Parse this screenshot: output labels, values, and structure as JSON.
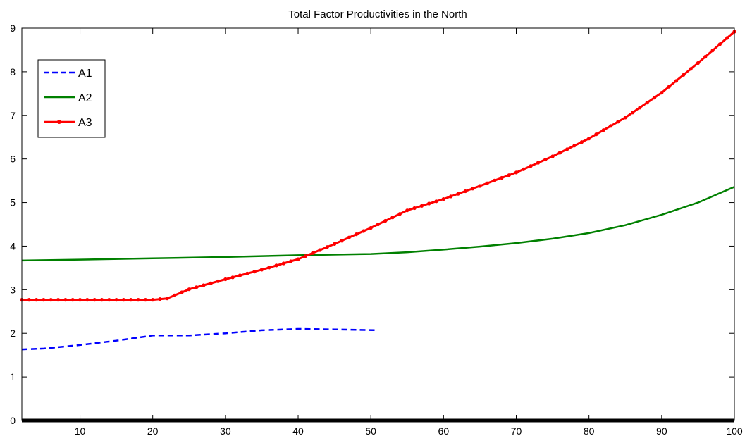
{
  "chart_data": {
    "type": "line",
    "title": "Total Factor Productivities in the North",
    "xlabel": "",
    "ylabel": "",
    "xlim": [
      2,
      100
    ],
    "ylim": [
      0,
      9
    ],
    "x_ticks": [
      10,
      20,
      30,
      40,
      50,
      60,
      70,
      80,
      90,
      100
    ],
    "y_ticks": [
      0,
      1,
      2,
      3,
      4,
      5,
      6,
      7,
      8,
      9
    ],
    "grid": false,
    "legend_position": "top-left",
    "series": [
      {
        "name": "A1",
        "color": "#0000ff",
        "style": "dashed",
        "x": [
          2,
          5,
          10,
          15,
          20,
          25,
          30,
          35,
          40,
          45,
          51
        ],
        "y": [
          1.63,
          1.65,
          1.73,
          1.83,
          1.95,
          1.95,
          2.0,
          2.07,
          2.1,
          2.09,
          2.07
        ]
      },
      {
        "name": "A2",
        "color": "#008000",
        "style": "solid",
        "x": [
          2,
          10,
          20,
          30,
          40,
          50,
          55,
          60,
          65,
          70,
          75,
          80,
          85,
          90,
          95,
          100
        ],
        "y": [
          3.67,
          3.69,
          3.72,
          3.75,
          3.79,
          3.82,
          3.86,
          3.92,
          3.99,
          4.07,
          4.17,
          4.3,
          4.48,
          4.72,
          5.0,
          5.36
        ]
      },
      {
        "name": "A3",
        "color": "#ff0000",
        "style": "solid-markers",
        "x": [
          2,
          5,
          10,
          15,
          20,
          22,
          25,
          30,
          35,
          40,
          45,
          50,
          55,
          60,
          65,
          70,
          75,
          80,
          85,
          90,
          95,
          100
        ],
        "y": [
          2.77,
          2.77,
          2.77,
          2.77,
          2.77,
          2.8,
          3.01,
          3.24,
          3.46,
          3.7,
          4.05,
          4.42,
          4.82,
          5.08,
          5.38,
          5.69,
          6.06,
          6.47,
          6.95,
          7.52,
          8.2,
          8.92
        ]
      }
    ]
  }
}
